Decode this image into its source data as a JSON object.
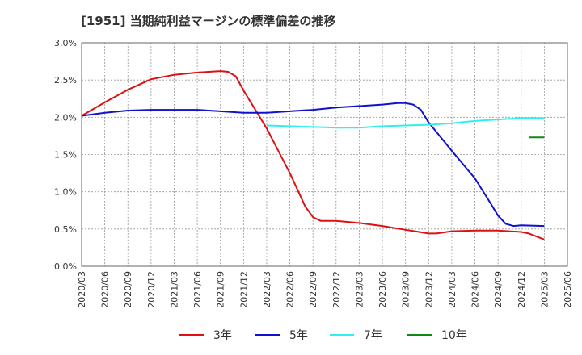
{
  "chart_data": {
    "type": "line",
    "title": "[1951]  当期純利益マージンの標準偏差の推移",
    "xlabel": "",
    "ylabel": "",
    "ylim": [
      0,
      0.03
    ],
    "y_ticks": [
      0,
      0.005,
      0.01,
      0.015,
      0.02,
      0.025,
      0.03
    ],
    "y_tick_labels": [
      "0.0%",
      "0.5%",
      "1.0%",
      "1.5%",
      "2.0%",
      "2.5%",
      "3.0%"
    ],
    "x_tick_labels": [
      "2020/03",
      "2020/06",
      "2020/09",
      "2020/12",
      "2021/03",
      "2021/06",
      "2021/09",
      "2021/12",
      "2022/03",
      "2022/06",
      "2022/09",
      "2022/12",
      "2023/03",
      "2023/06",
      "2023/09",
      "2023/12",
      "2024/03",
      "2024/06",
      "2024/09",
      "2024/12",
      "2025/03",
      "2025/06"
    ],
    "grid": true,
    "legend_position": "bottom",
    "series": [
      {
        "name": "3年",
        "color": "#dd1111",
        "points": [
          [
            "2020/03",
            0.0202
          ],
          [
            "2020/06",
            0.022
          ],
          [
            "2020/09",
            0.0237
          ],
          [
            "2020/12",
            0.0251
          ],
          [
            "2021/03",
            0.0257
          ],
          [
            "2021/06",
            0.026
          ],
          [
            "2021/09",
            0.0262
          ],
          [
            "2021/10",
            0.0261
          ],
          [
            "2021/11",
            0.0255
          ],
          [
            "2021/12",
            0.0236
          ],
          [
            "2022/03",
            0.0185
          ],
          [
            "2022/06",
            0.0125
          ],
          [
            "2022/08",
            0.008
          ],
          [
            "2022/09",
            0.0066
          ],
          [
            "2022/10",
            0.0061
          ],
          [
            "2022/12",
            0.0061
          ],
          [
            "2023/03",
            0.0058
          ],
          [
            "2023/06",
            0.0054
          ],
          [
            "2023/09",
            0.0049
          ],
          [
            "2023/12",
            0.0044
          ],
          [
            "2024/01",
            0.0044
          ],
          [
            "2024/03",
            0.0047
          ],
          [
            "2024/06",
            0.0048
          ],
          [
            "2024/09",
            0.0048
          ],
          [
            "2024/12",
            0.0046
          ],
          [
            "2025/01",
            0.0044
          ],
          [
            "2025/03",
            0.0036
          ]
        ]
      },
      {
        "name": "5年",
        "color": "#1111cc",
        "points": [
          [
            "2020/03",
            0.0202
          ],
          [
            "2020/06",
            0.0206
          ],
          [
            "2020/09",
            0.0209
          ],
          [
            "2020/12",
            0.021
          ],
          [
            "2021/03",
            0.021
          ],
          [
            "2021/06",
            0.021
          ],
          [
            "2021/09",
            0.0208
          ],
          [
            "2021/12",
            0.0206
          ],
          [
            "2022/03",
            0.0206
          ],
          [
            "2022/06",
            0.0208
          ],
          [
            "2022/09",
            0.021
          ],
          [
            "2022/12",
            0.0213
          ],
          [
            "2023/03",
            0.0215
          ],
          [
            "2023/06",
            0.0217
          ],
          [
            "2023/08",
            0.0219
          ],
          [
            "2023/09",
            0.0219
          ],
          [
            "2023/10",
            0.0217
          ],
          [
            "2023/11",
            0.021
          ],
          [
            "2023/12",
            0.0193
          ],
          [
            "2024/03",
            0.0155
          ],
          [
            "2024/06",
            0.0118
          ],
          [
            "2024/08",
            0.0085
          ],
          [
            "2024/09",
            0.0068
          ],
          [
            "2024/10",
            0.0057
          ],
          [
            "2024/11",
            0.0054
          ],
          [
            "2024/12",
            0.0055
          ],
          [
            "2025/03",
            0.0054
          ]
        ]
      },
      {
        "name": "7年",
        "color": "#33eeee",
        "points": [
          [
            "2022/03",
            0.0189
          ],
          [
            "2022/06",
            0.0188
          ],
          [
            "2022/09",
            0.0187
          ],
          [
            "2022/12",
            0.0186
          ],
          [
            "2023/03",
            0.0186
          ],
          [
            "2023/06",
            0.0188
          ],
          [
            "2023/09",
            0.0189
          ],
          [
            "2023/12",
            0.019
          ],
          [
            "2024/03",
            0.0192
          ],
          [
            "2024/06",
            0.0195
          ],
          [
            "2024/09",
            0.0197
          ],
          [
            "2024/12",
            0.0199
          ],
          [
            "2025/03",
            0.0199
          ]
        ]
      },
      {
        "name": "10年",
        "color": "#118811",
        "points": [
          [
            "2025/01",
            0.0173
          ],
          [
            "2025/03",
            0.0173
          ]
        ]
      }
    ]
  }
}
